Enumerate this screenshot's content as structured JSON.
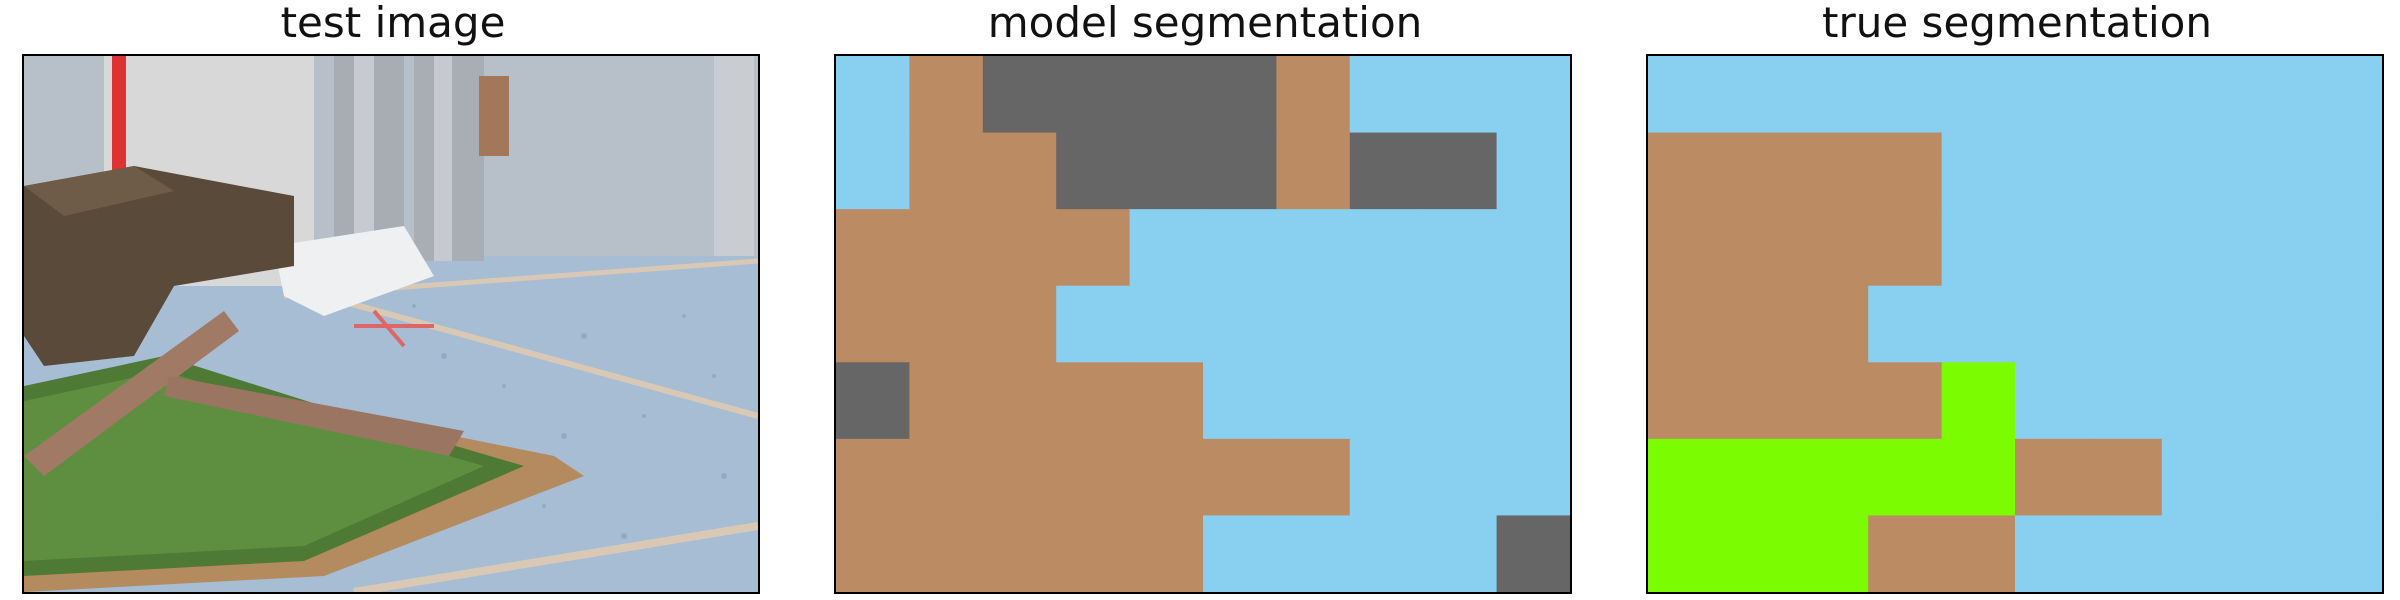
{
  "figure": {
    "titles": [
      "test image",
      "model segmentation",
      "true segmentation"
    ]
  },
  "colors": {
    "sky_blue": "#89CFF0",
    "brown": "#BB8C63",
    "gray": "#666666",
    "green": "#7CFC00"
  },
  "chart_data": [
    {
      "type": "image",
      "title": "test image",
      "description_icons": [
        "photo-scene-icon"
      ]
    },
    {
      "type": "heatmap",
      "title": "model segmentation",
      "rows": 7,
      "cols": 10,
      "legend": {
        "0": "sky_blue",
        "1": "brown",
        "2": "gray",
        "3": "green"
      },
      "grid": [
        [
          0,
          1,
          2,
          2,
          2,
          2,
          1,
          0,
          0,
          0
        ],
        [
          0,
          1,
          1,
          2,
          2,
          2,
          1,
          2,
          2,
          0
        ],
        [
          1,
          1,
          1,
          1,
          0,
          0,
          0,
          0,
          0,
          0
        ],
        [
          1,
          1,
          1,
          0,
          0,
          0,
          0,
          0,
          0,
          0
        ],
        [
          2,
          1,
          1,
          1,
          1,
          0,
          0,
          0,
          0,
          0
        ],
        [
          1,
          1,
          1,
          1,
          1,
          1,
          1,
          0,
          0,
          0
        ],
        [
          1,
          1,
          1,
          1,
          1,
          0,
          0,
          0,
          0,
          2
        ]
      ]
    },
    {
      "type": "heatmap",
      "title": "true segmentation",
      "rows": 7,
      "cols": 10,
      "legend": {
        "0": "sky_blue",
        "1": "brown",
        "2": "gray",
        "3": "green"
      },
      "grid": [
        [
          0,
          0,
          0,
          0,
          0,
          0,
          0,
          0,
          0,
          0
        ],
        [
          1,
          1,
          1,
          1,
          0,
          0,
          0,
          0,
          0,
          0
        ],
        [
          1,
          1,
          1,
          1,
          0,
          0,
          0,
          0,
          0,
          0
        ],
        [
          1,
          1,
          1,
          0,
          0,
          0,
          0,
          0,
          0,
          0
        ],
        [
          1,
          1,
          1,
          1,
          3,
          0,
          0,
          0,
          0,
          0
        ],
        [
          3,
          3,
          3,
          3,
          3,
          1,
          1,
          0,
          0,
          0
        ],
        [
          3,
          3,
          3,
          1,
          1,
          0,
          0,
          0,
          0,
          0
        ]
      ]
    }
  ]
}
